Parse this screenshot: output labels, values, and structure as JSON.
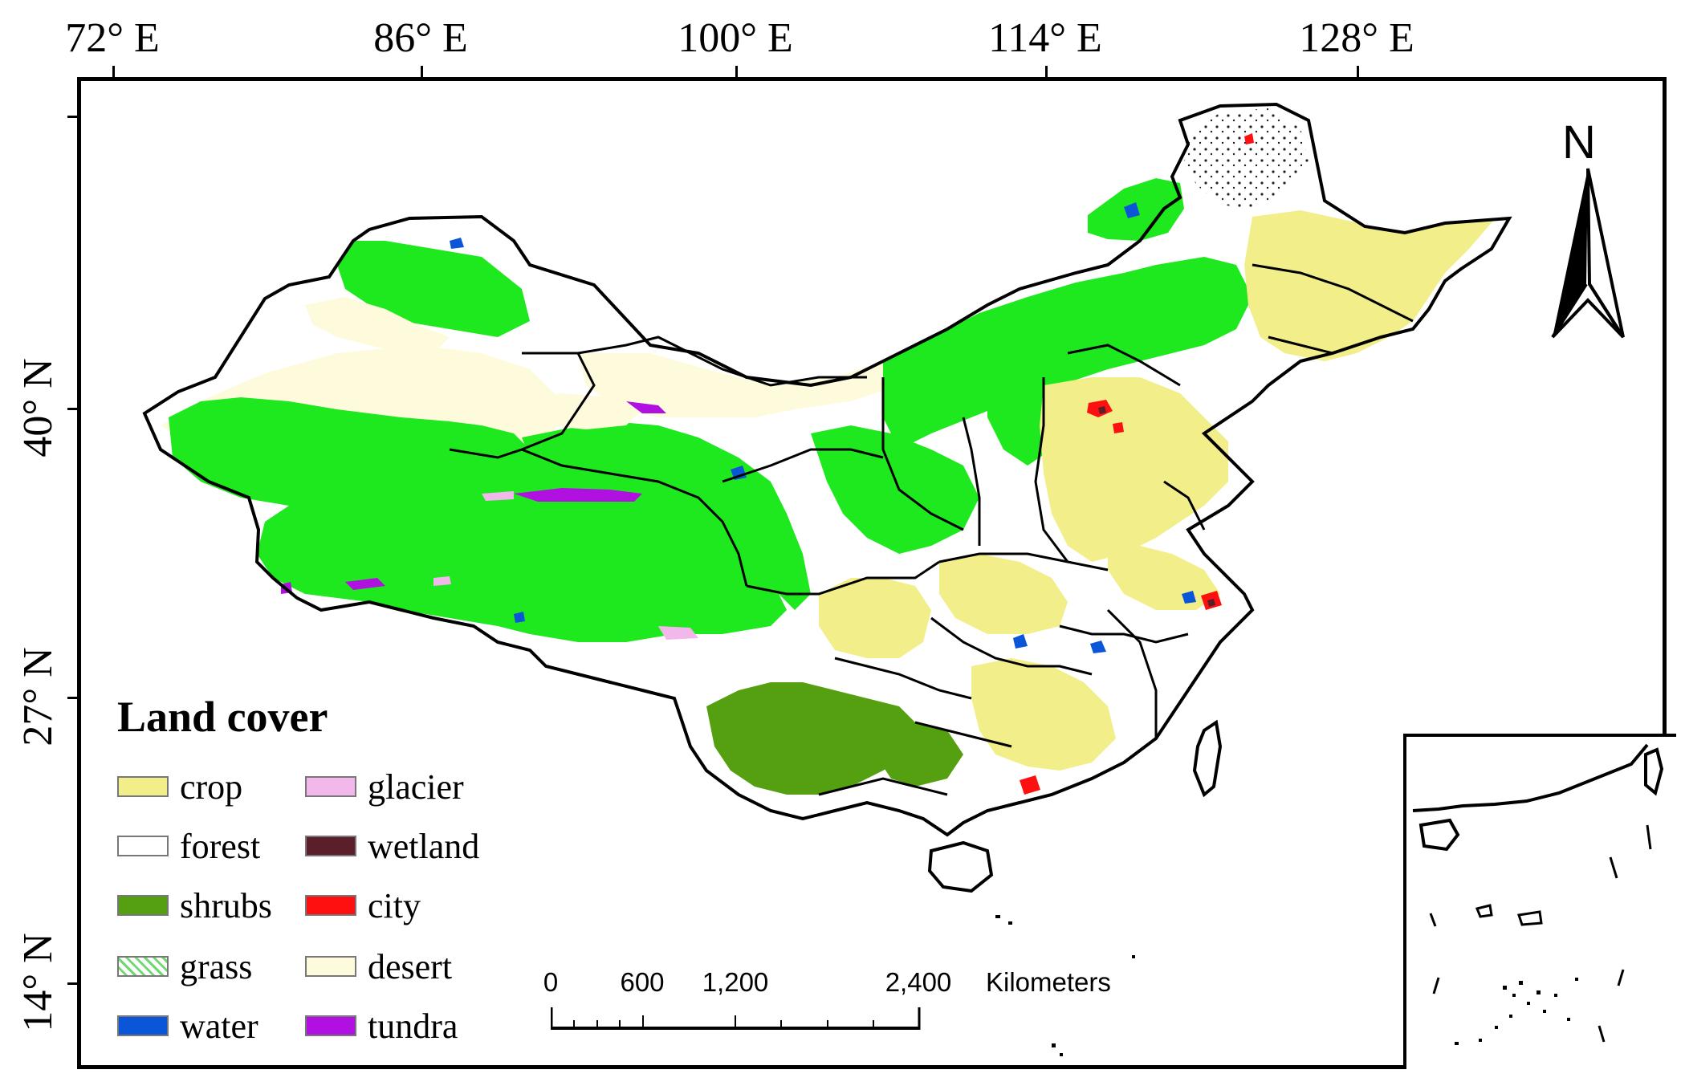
{
  "map": {
    "longitude_labels": [
      "72° E",
      "86° E",
      "100° E",
      "114° E",
      "128° E"
    ],
    "latitude_labels": [
      "40° N",
      "27° N",
      "14° N"
    ],
    "north_label": "N"
  },
  "legend": {
    "title": "Land cover",
    "items": [
      {
        "label": "crop",
        "color": "#f2ee8a",
        "icon": "solid"
      },
      {
        "label": "forest",
        "color": "#ffffff",
        "icon": "solid"
      },
      {
        "label": "shrubs",
        "color": "#55a010",
        "icon": "solid"
      },
      {
        "label": "grass",
        "color": "#ffffff",
        "icon": "hatched-green"
      },
      {
        "label": "water",
        "color": "#0a55d8",
        "icon": "solid"
      },
      {
        "label": "glacier",
        "color": "#f2b8ec",
        "icon": "solid"
      },
      {
        "label": "wetland",
        "color": "#5a1f2a",
        "icon": "solid"
      },
      {
        "label": "city",
        "color": "#ff1010",
        "icon": "solid"
      },
      {
        "label": "desert",
        "color": "#fdfbdc",
        "icon": "solid"
      },
      {
        "label": "tundra",
        "color": "#b010e0",
        "icon": "solid"
      }
    ]
  },
  "scalebar": {
    "labels": [
      "0",
      "600",
      "1,200",
      "2,400"
    ],
    "unit": "Kilometers"
  },
  "colors": {
    "grassland_fill": "#1ee81e",
    "boundary": "#000000"
  }
}
